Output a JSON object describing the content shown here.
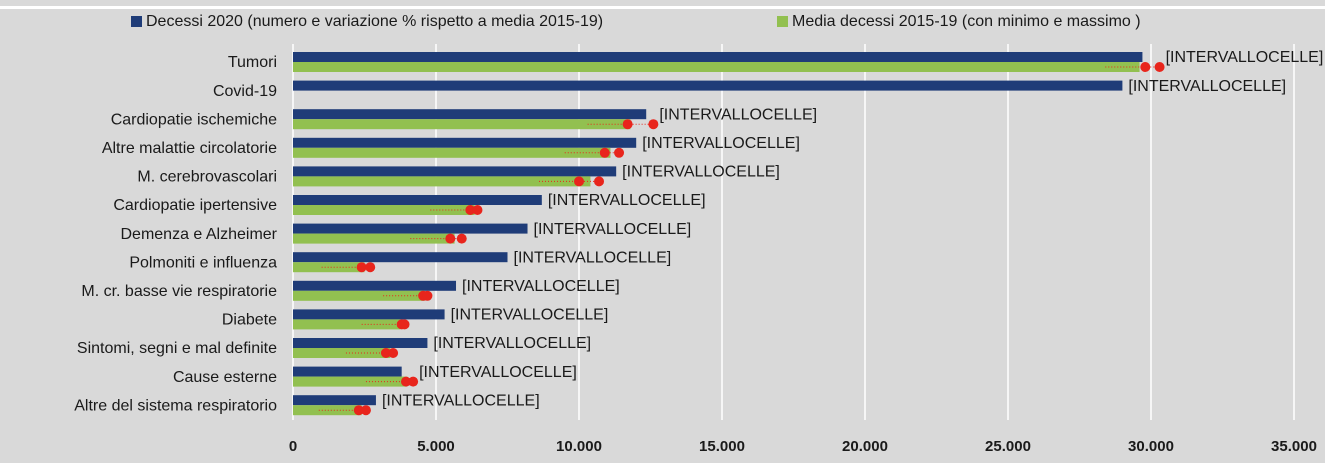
{
  "chart_data": {
    "type": "bar",
    "orientation": "horizontal",
    "categories": [
      "Tumori",
      "Covid-19",
      "Cardiopatie ischemiche",
      "Altre malattie circolatorie",
      "M. cerebrovascolari",
      "Cardiopatie ipertensive",
      "Demenza e Alzheimer",
      "Polmoniti e influenza",
      "M. cr. basse vie respiratorie",
      "Diabete",
      "Sintomi, segni e mal definite",
      "Cause esterne",
      "Altre del sistema respiratorio"
    ],
    "series": [
      {
        "name": "Decessi 2020 (numero e variazione % rispetto a media 2015-19)",
        "color": "#1f3c78",
        "values": [
          29700,
          29000,
          12350,
          12000,
          11300,
          8700,
          8200,
          7500,
          5700,
          5300,
          4700,
          3800,
          2900
        ]
      },
      {
        "name": "Media decessi 2015-19 (con minimo e massimo )",
        "color": "#92c050",
        "values": [
          29600,
          null,
          11800,
          11100,
          10400,
          6350,
          5650,
          2500,
          4600,
          3750,
          3400,
          4000,
          2400
        ]
      }
    ],
    "range": {
      "color": "#e8251c",
      "min": [
        29800,
        null,
        11700,
        10900,
        10000,
        6200,
        5500,
        2400,
        4550,
        3800,
        3250,
        3950,
        2300
      ],
      "max": [
        30300,
        null,
        12600,
        11400,
        10700,
        6450,
        5900,
        2700,
        4700,
        3900,
        3500,
        4200,
        2550
      ]
    },
    "data_labels": [
      "[INTERVALLOCELLE]",
      "[INTERVALLOCELLE]",
      "[INTERVALLOCELLE]",
      "[INTERVALLOCELLE]",
      "[INTERVALLOCELLE]",
      "[INTERVALLOCELLE]",
      "[INTERVALLOCELLE]",
      "[INTERVALLOCELLE]",
      "[INTERVALLOCELLE]",
      "[INTERVALLOCELLE]",
      "[INTERVALLOCELLE]",
      "[INTERVALLOCELLE]",
      "[INTERVALLOCELLE]"
    ],
    "xlim": [
      0,
      35000
    ],
    "xticks": [
      0,
      {
        "value": 5000,
        "label": "5.000"
      },
      {
        "value": 10000,
        "label": "10.000"
      },
      {
        "value": 15000,
        "label": "15.000"
      },
      {
        "value": 20000,
        "label": "20.000"
      },
      {
        "value": 25000,
        "label": "25.000"
      },
      {
        "value": 30000,
        "label": "30.000"
      },
      {
        "value": 35000,
        "label": "35.000"
      }
    ],
    "grid": true
  }
}
